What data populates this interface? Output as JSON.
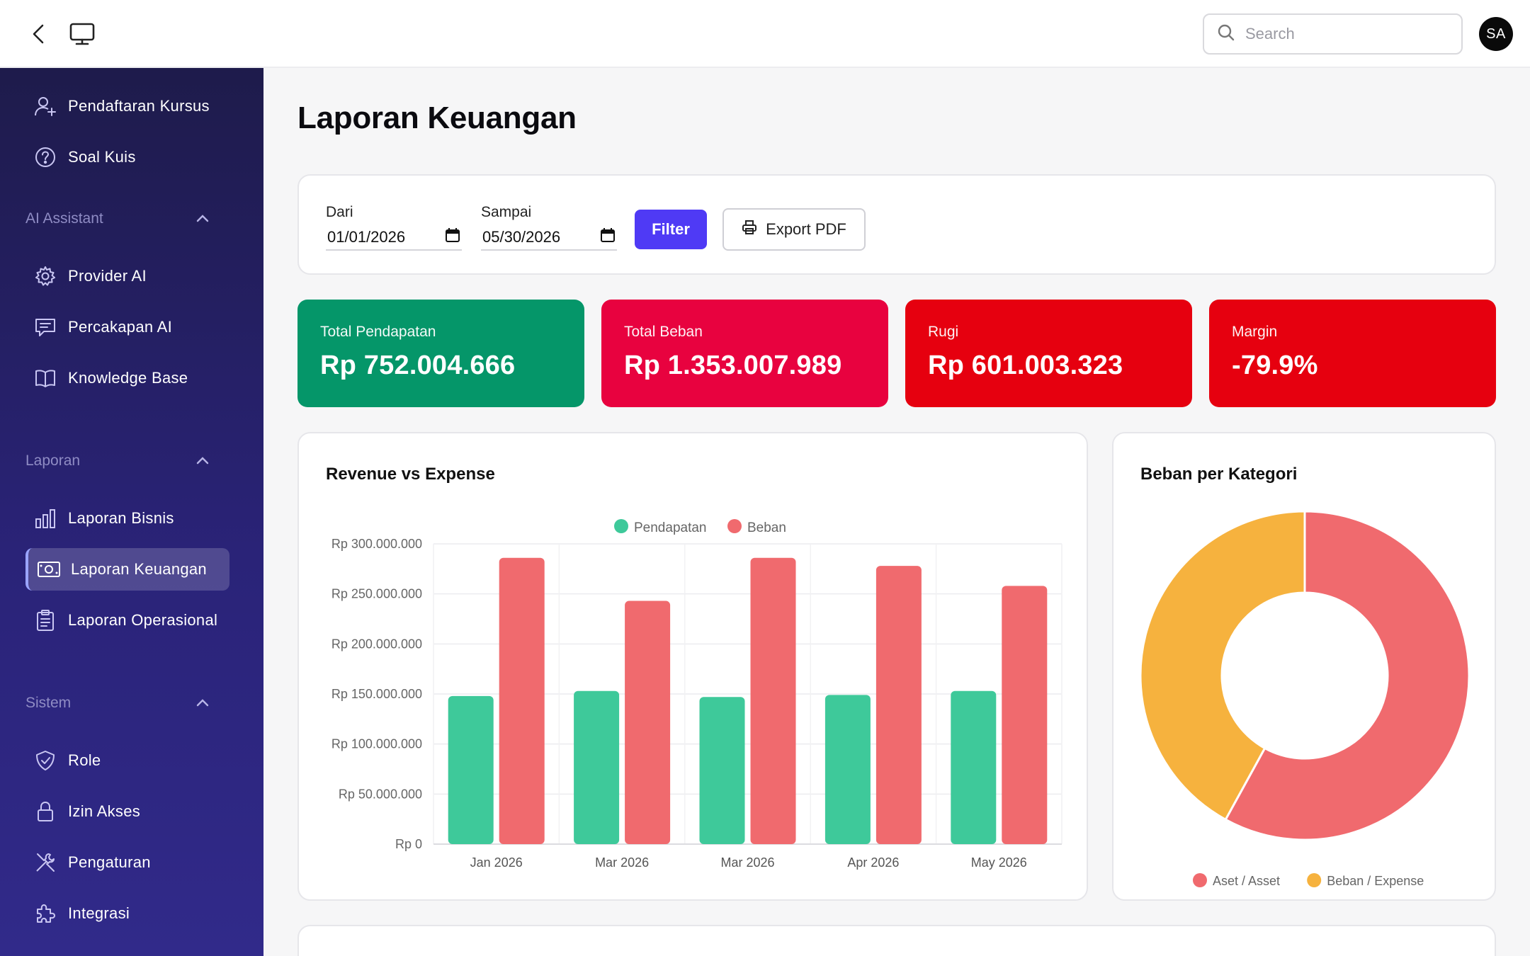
{
  "header": {
    "search_placeholder": "Search",
    "avatar_initials": "SA"
  },
  "sidebar": {
    "items_top": [
      {
        "label": "Pendaftaran Kursus",
        "icon": "user-plus-icon"
      },
      {
        "label": "Soal Kuis",
        "icon": "question-circle-icon"
      }
    ],
    "sections": [
      {
        "title": "AI Assistant",
        "items": [
          {
            "label": "Provider AI",
            "icon": "gear-icon"
          },
          {
            "label": "Percakapan AI",
            "icon": "chat-icon"
          },
          {
            "label": "Knowledge Base",
            "icon": "book-icon"
          }
        ]
      },
      {
        "title": "Laporan",
        "items": [
          {
            "label": "Laporan Bisnis",
            "icon": "bar-chart-icon"
          },
          {
            "label": "Laporan Keuangan",
            "icon": "money-icon",
            "active": true
          },
          {
            "label": "Laporan Operasional",
            "icon": "clipboard-icon"
          }
        ]
      },
      {
        "title": "Sistem",
        "items": [
          {
            "label": "Role",
            "icon": "shield-check-icon"
          },
          {
            "label": "Izin Akses",
            "icon": "lock-icon"
          },
          {
            "label": "Pengaturan",
            "icon": "tools-icon"
          },
          {
            "label": "Integrasi",
            "icon": "puzzle-icon"
          }
        ]
      }
    ]
  },
  "main": {
    "title": "Laporan Keuangan",
    "filter": {
      "from_label": "Dari",
      "from_value": "01/01/2026",
      "to_label": "Sampai",
      "to_value": "05/30/2026",
      "filter_button": "Filter",
      "export_button": "Export PDF"
    },
    "kpis": [
      {
        "label": "Total Pendapatan",
        "value": "Rp 752.004.666",
        "color": "#059669"
      },
      {
        "label": "Total Beban",
        "value": "Rp 1.353.007.989",
        "color": "#e8023f"
      },
      {
        "label": "Rugi",
        "value": "Rp 601.003.323",
        "color": "#e6000f"
      },
      {
        "label": "Margin",
        "value": "-79.9%",
        "color": "#e6000f"
      }
    ],
    "bar_chart_title": "Revenue vs Expense",
    "pie_chart_title": "Beban per Kategori"
  },
  "chart_data": [
    {
      "type": "bar",
      "title": "Revenue vs Expense",
      "categories": [
        "Jan 2026",
        "Mar 2026",
        "Mar 2026",
        "Apr 2026",
        "May 2026"
      ],
      "series": [
        {
          "name": "Pendapatan",
          "color": "#3ec99a",
          "values": [
            148000000,
            153000000,
            147000000,
            149000000,
            153000000
          ]
        },
        {
          "name": "Beban",
          "color": "#f06a6e",
          "values": [
            286000000,
            243000000,
            286000000,
            278000000,
            258000000
          ]
        }
      ],
      "ylim": [
        0,
        300000000
      ],
      "yticks": [
        "Rp 0",
        "Rp 50.000.000",
        "Rp 100.000.000",
        "Rp 150.000.000",
        "Rp 200.000.000",
        "Rp 250.000.000",
        "Rp 300.000.000"
      ],
      "legend": "top-center",
      "grid": true
    },
    {
      "type": "pie",
      "title": "Beban per Kategori",
      "labels": [
        "Aset / Asset",
        "Beban / Expense"
      ],
      "values": [
        58,
        42
      ],
      "colors": [
        "#f06a6e",
        "#f6b23e"
      ],
      "donut": true,
      "legend": "bottom"
    }
  ]
}
